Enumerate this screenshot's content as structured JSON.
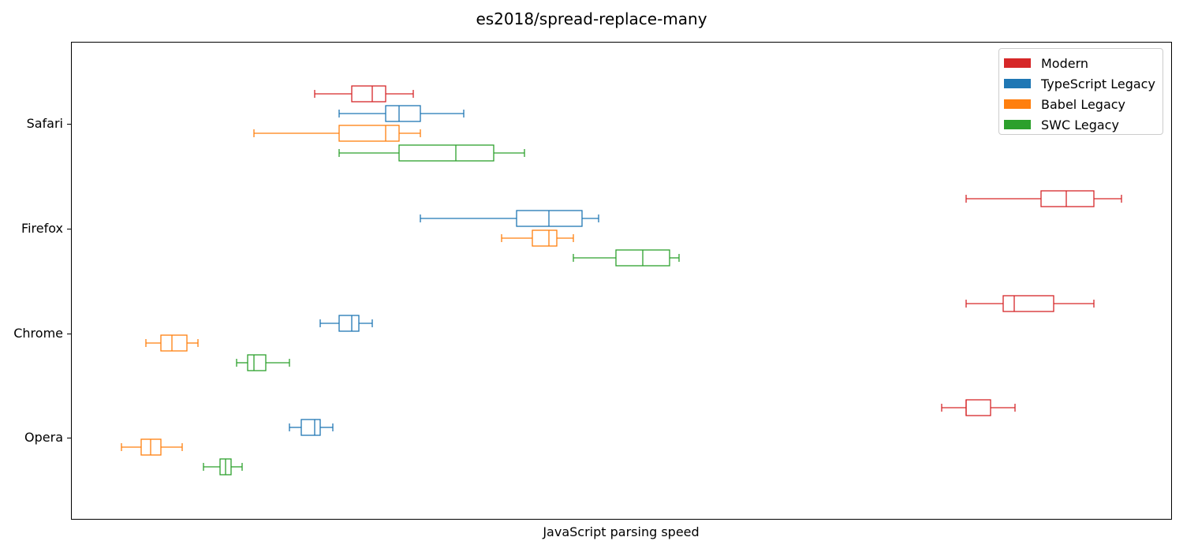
{
  "chart_data": {
    "type": "boxplot",
    "orientation": "horizontal",
    "title": "es2018/spread-replace-many",
    "xlabel": "JavaScript parsing speed",
    "ylabel": "",
    "x_ticks_shown": false,
    "xlim": [
      0,
      1395
    ],
    "categories": [
      "Safari",
      "Firefox",
      "Chrome",
      "Opera"
    ],
    "grid": false,
    "legend_position": "top-right",
    "series": [
      {
        "name": "Modern",
        "color": "#d62728",
        "boxes": [
          {
            "category": "Safari",
            "whislo": 309,
            "q1": 356,
            "med": 382,
            "q3": 399,
            "whishi": 434
          },
          {
            "category": "Firefox",
            "whislo": 1135,
            "q1": 1230,
            "med": 1262,
            "q3": 1297,
            "whishi": 1332
          },
          {
            "category": "Chrome",
            "whislo": 1135,
            "q1": 1182,
            "med": 1196,
            "q3": 1246,
            "whishi": 1297
          },
          {
            "category": "Opera",
            "whislo": 1104,
            "q1": 1135,
            "med": 1135,
            "q3": 1166,
            "whishi": 1197
          }
        ]
      },
      {
        "name": "TypeScript Legacy",
        "color": "#1f77b4",
        "boxes": [
          {
            "category": "Safari",
            "whislo": 340,
            "q1": 399,
            "med": 416,
            "q3": 443,
            "whishi": 498
          },
          {
            "category": "Firefox",
            "whislo": 443,
            "q1": 565,
            "med": 606,
            "q3": 648,
            "whishi": 669
          },
          {
            "category": "Chrome",
            "whislo": 316,
            "q1": 340,
            "med": 356,
            "q3": 365,
            "whishi": 382
          },
          {
            "category": "Opera",
            "whislo": 277,
            "q1": 292,
            "med": 309,
            "q3": 316,
            "whishi": 332
          }
        ]
      },
      {
        "name": "Babel Legacy",
        "color": "#ff7f0e",
        "boxes": [
          {
            "category": "Safari",
            "whislo": 232,
            "q1": 340,
            "med": 399,
            "q3": 416,
            "whishi": 443
          },
          {
            "category": "Firefox",
            "whislo": 546,
            "q1": 585,
            "med": 606,
            "q3": 616,
            "whishi": 637
          },
          {
            "category": "Chrome",
            "whislo": 95,
            "q1": 114,
            "med": 128,
            "q3": 147,
            "whishi": 161
          },
          {
            "category": "Opera",
            "whislo": 64,
            "q1": 89,
            "med": 101,
            "q3": 114,
            "whishi": 141
          }
        ]
      },
      {
        "name": "SWC Legacy",
        "color": "#2ca02c",
        "boxes": [
          {
            "category": "Safari",
            "whislo": 340,
            "q1": 416,
            "med": 488,
            "q3": 536,
            "whishi": 575
          },
          {
            "category": "Firefox",
            "whislo": 637,
            "q1": 691,
            "med": 725,
            "q3": 759,
            "whishi": 771
          },
          {
            "category": "Chrome",
            "whislo": 210,
            "q1": 224,
            "med": 232,
            "q3": 247,
            "whishi": 277
          },
          {
            "category": "Opera",
            "whislo": 168,
            "q1": 189,
            "med": 196,
            "q3": 203,
            "whishi": 217
          }
        ]
      }
    ]
  }
}
